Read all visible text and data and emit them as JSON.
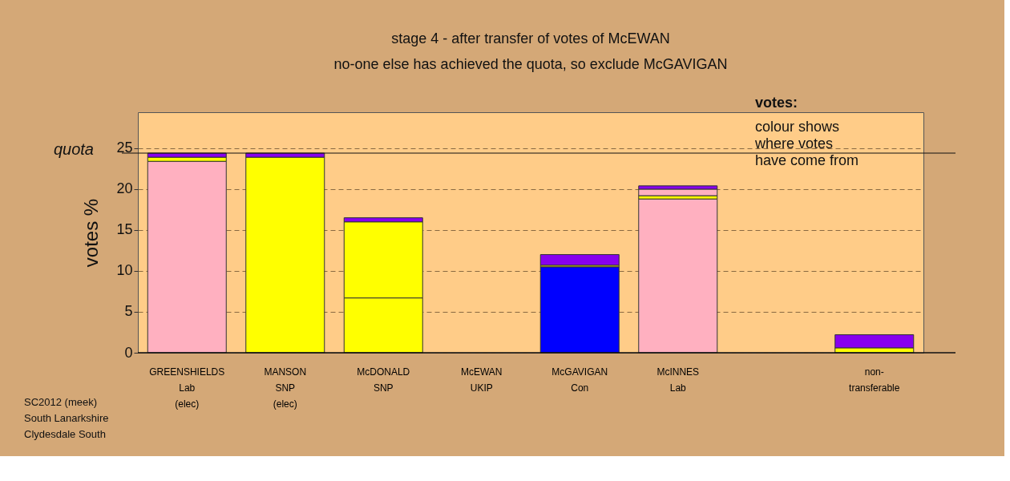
{
  "chart_data": {
    "type": "bar",
    "stacked": true,
    "title": "stage 4 - after transfer of votes of McEWAN",
    "subtitle": "no-one else has achieved the quota, so exclude McGAVIGAN",
    "ylabel": "votes %",
    "categories": [
      "GREENSHIELDS\nLab\n(elec)",
      "MANSON\nSNP\n(elec)",
      "McDONALD\nSNP",
      "McEWAN\nUKIP",
      "McGAVIGAN\nCon",
      "McINNES\nLab",
      null,
      "non-\ntransferable"
    ],
    "series": [
      {
        "color": "#ffb0c0",
        "values": [
          23.4,
          null,
          null,
          null,
          null,
          18.8,
          null,
          null
        ]
      },
      {
        "color": "#0000ff",
        "values": [
          null,
          null,
          null,
          null,
          10.5,
          null,
          null,
          null
        ]
      },
      {
        "color": "#ffff00",
        "values": [
          0.5,
          23.9,
          6.7,
          null,
          0.2,
          0.4,
          null,
          0.6
        ]
      },
      {
        "color": "#ffff00",
        "values": [
          null,
          null,
          9.3,
          null,
          null,
          null,
          null,
          null
        ]
      },
      {
        "color": "#ffb0c0",
        "values": [
          null,
          null,
          null,
          null,
          null,
          0.8,
          null,
          null
        ]
      },
      {
        "color": "#8800ee",
        "values": [
          0.5,
          0.5,
          0.5,
          null,
          1.3,
          0.4,
          null,
          1.6
        ]
      }
    ],
    "ylim": [
      0,
      29.4
    ],
    "yticks": [
      0,
      5,
      10,
      15,
      20,
      25
    ],
    "grid": "y",
    "ref_lines": [
      {
        "axis": "y",
        "value": 24.4,
        "label": "quota"
      }
    ],
    "annotations": [
      "votes:",
      "colour shows where votes have come from",
      "SC2012 (meek)",
      "South Lanarkshire",
      "Clydesdale South"
    ]
  }
}
